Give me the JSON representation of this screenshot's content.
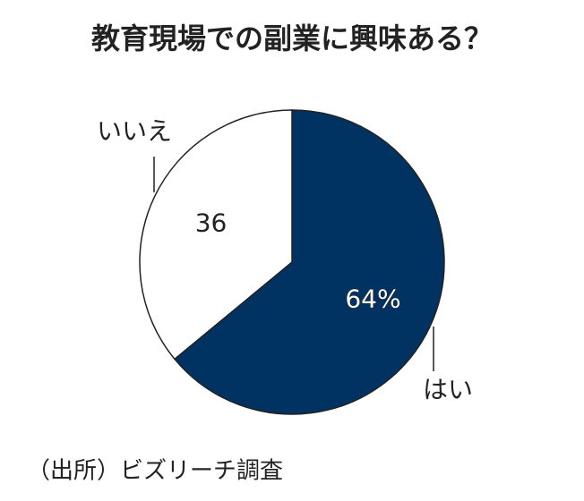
{
  "chart_data": {
    "type": "pie",
    "title": "教育現場での副業に興味ある？",
    "categories": [
      "はい",
      "いいえ"
    ],
    "values": [
      64,
      36
    ],
    "value_labels": [
      "64%",
      "36"
    ],
    "colors": [
      "#003362",
      "#ffffff"
    ],
    "source": "（出所）ビズリーチ調査"
  }
}
